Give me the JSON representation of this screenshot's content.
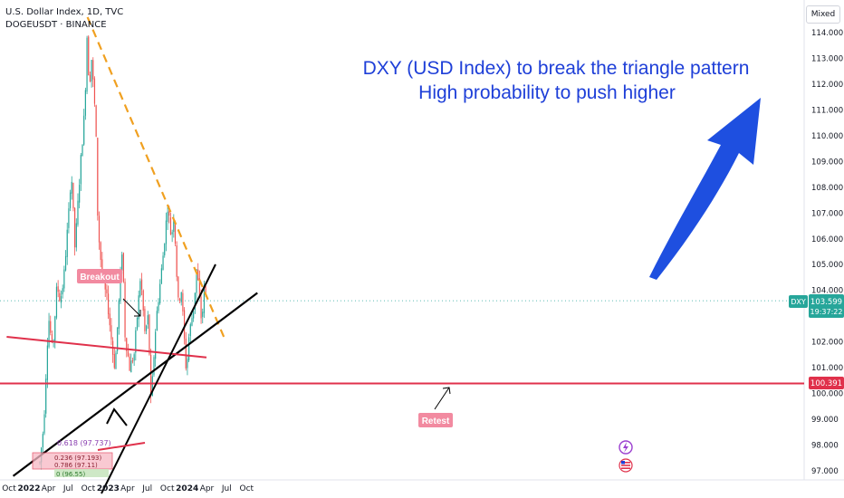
{
  "header": {
    "symbol_line": "U.S. Dollar Index, 1D, TVC",
    "overlay_line": "DOGEUSDT · BINANCE"
  },
  "scale_mode": "Mixed",
  "annotation": {
    "line1": "DXY (USD Index) to break the triangle pattern",
    "line2": "High probability to push higher",
    "color": "#1e3fd8"
  },
  "labels": {
    "breakout": "Breakout",
    "retest": "Retest"
  },
  "fib_labels": [
    "0.618 (97.737)",
    "0.236 (97.193)",
    "0.786 (97.11)",
    "0 (96.55)"
  ],
  "price_tags": {
    "dxy_ticker": "DXY",
    "dxy_price": "103.599",
    "countdown": "19:37:22",
    "red_level": "100.391"
  },
  "colors": {
    "up": "#26a69a",
    "down": "#ef5350",
    "dashed_line": "#f0a020",
    "support_line": "#000000",
    "red_line": "#e0314b",
    "arrow": "#1e4fe0",
    "pink_label": "#f28aa0"
  },
  "chart_data": {
    "type": "candlestick",
    "title": "U.S. Dollar Index, 1D, TVC",
    "ylim": [
      96.8,
      114.7
    ],
    "y_ticks": [
      "114.000",
      "113.000",
      "112.000",
      "111.000",
      "110.000",
      "109.000",
      "108.000",
      "107.000",
      "106.000",
      "105.000",
      "104.000",
      "102.000",
      "101.000",
      "100.000",
      "99.000",
      "98.000",
      "97.000"
    ],
    "x_ticks": [
      "Oct",
      "2022",
      "Apr",
      "Jul",
      "Oct",
      "2023",
      "Apr",
      "Jul",
      "Oct",
      "2024",
      "Apr",
      "Jul",
      "Oct"
    ],
    "price_path": [
      [
        "2021-11-15",
        96.0
      ],
      [
        "2022-01-01",
        96.7
      ],
      [
        "2022-02-15",
        96.9
      ],
      [
        "2022-03-10",
        98.8
      ],
      [
        "2022-04-01",
        103.0
      ],
      [
        "2022-04-20",
        101.6
      ],
      [
        "2022-05-10",
        104.2
      ],
      [
        "2022-05-25",
        103.6
      ],
      [
        "2022-06-10",
        104.4
      ],
      [
        "2022-07-05",
        107.2
      ],
      [
        "2022-07-15",
        108.7
      ],
      [
        "2022-08-01",
        105.6
      ],
      [
        "2022-08-25",
        108.7
      ],
      [
        "2022-09-15",
        111.0
      ],
      [
        "2022-09-28",
        114.5
      ],
      [
        "2022-10-05",
        111.5
      ],
      [
        "2022-10-15",
        113.2
      ],
      [
        "2022-11-05",
        110.5
      ],
      [
        "2022-11-15",
        106.5
      ],
      [
        "2022-12-05",
        104.5
      ],
      [
        "2022-12-30",
        103.5
      ],
      [
        "2023-01-25",
        101.4
      ],
      [
        "2023-02-02",
        101.0
      ],
      [
        "2023-03-08",
        105.8
      ],
      [
        "2023-03-20",
        102.3
      ],
      [
        "2023-04-10",
        101.0
      ],
      [
        "2023-05-01",
        101.5
      ],
      [
        "2023-05-31",
        104.6
      ],
      [
        "2023-06-20",
        102.3
      ],
      [
        "2023-07-05",
        103.0
      ],
      [
        "2023-07-18",
        99.6
      ],
      [
        "2023-08-10",
        102.8
      ],
      [
        "2023-09-10",
        105.2
      ],
      [
        "2023-10-03",
        107.3
      ],
      [
        "2023-10-20",
        106.0
      ],
      [
        "2023-11-01",
        107.0
      ],
      [
        "2023-11-20",
        103.5
      ],
      [
        "2023-12-05",
        104.0
      ],
      [
        "2023-12-28",
        100.8
      ],
      [
        "2024-01-10",
        102.3
      ],
      [
        "2024-02-01",
        103.4
      ],
      [
        "2024-02-14",
        104.9
      ],
      [
        "2024-03-08",
        102.7
      ],
      [
        "2024-03-22",
        104.4
      ],
      [
        "2024-03-28",
        103.6
      ]
    ],
    "lines": [
      {
        "name": "",
        "style": "dashed",
        "from": [
          "2022-09-28",
          114.6
        ],
        "to": [
          "2024-06-18",
          102.2
        ]
      },
      {
        "name": "",
        "style": "solid",
        "from": [
          "2021-10-20",
          96.8
        ],
        "to": [
          "2024-11-20",
          103.9
        ]
      },
      {
        "name": "",
        "style": "solid",
        "from": [
          "2021-09-20",
          102.2
        ],
        "to": [
          "2024-03-30",
          101.4
        ]
      },
      {
        "name": "",
        "style": "solid",
        "from": [
          "2021-09-20",
          100.4
        ],
        "to": [
          "2024-11-20",
          100.4
        ]
      }
    ],
    "grid": false,
    "legend": "none"
  }
}
